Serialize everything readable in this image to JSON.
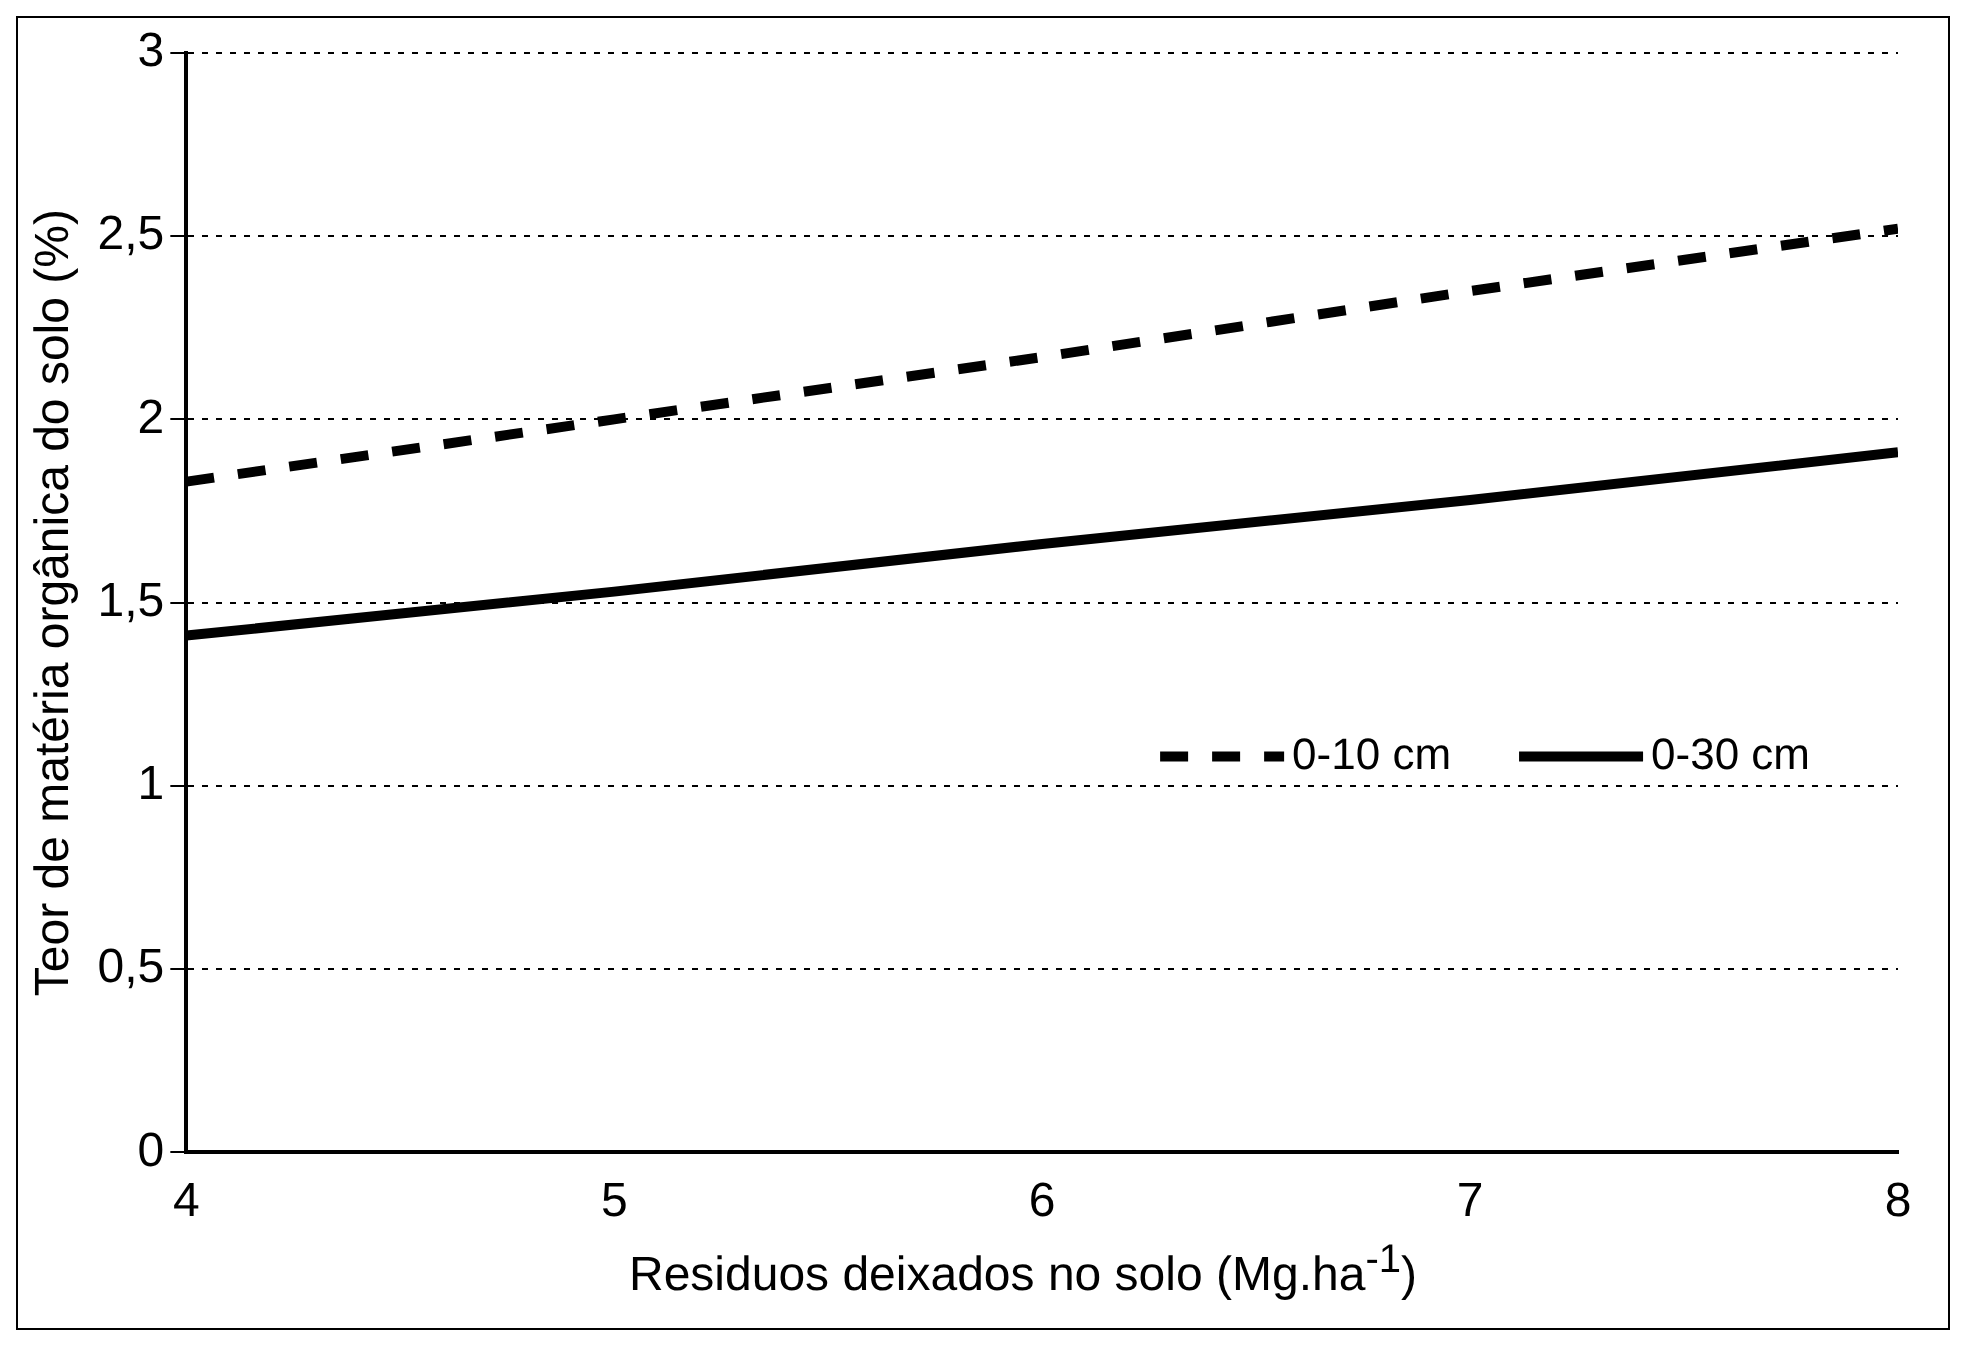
{
  "chart_data": {
    "type": "line",
    "xlabel": "Residuos deixados no solo (Mg.ha$^{-1}$)",
    "ylabel": "Teor de matéria orgânica do solo (%)",
    "x": [
      4,
      5,
      6,
      7,
      8
    ],
    "series": [
      {
        "name": "0-10 cm",
        "color": "#000000",
        "line_style": "dashed",
        "values": [
          1.83,
          2.0,
          2.17,
          2.35,
          2.52
        ]
      },
      {
        "name": "0-30 cm",
        "color": "#000000",
        "line_style": "solid",
        "values": [
          1.41,
          1.53,
          1.66,
          1.78,
          1.91
        ]
      }
    ],
    "xlim": [
      4,
      8
    ],
    "xticks": [
      4,
      5,
      6,
      7,
      8
    ],
    "ylim": [
      0,
      3
    ],
    "yticks": [
      0,
      {
        "value": 0.5,
        "label": "0,5"
      },
      1,
      {
        "value": 1.5,
        "label": "1,5"
      },
      2,
      {
        "value": 2.5,
        "label": "2,5"
      },
      3
    ],
    "grid": "y",
    "legend": "right",
    "marker": "none"
  }
}
